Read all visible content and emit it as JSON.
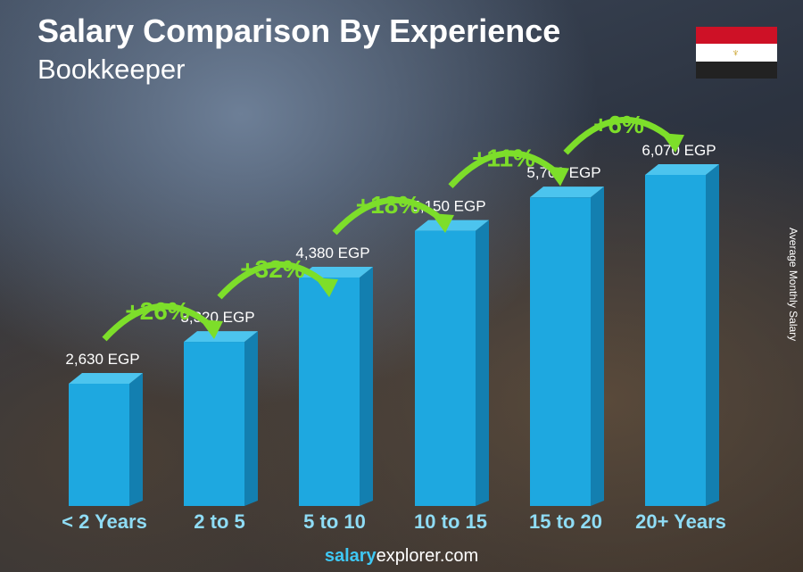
{
  "title": "Salary Comparison By Experience",
  "subtitle": "Bookkeeper",
  "flag_colors": [
    "#ce1126",
    "#ffffff",
    "#000000"
  ],
  "site": {
    "part1": "salary",
    "part2": "explorer",
    ".com": ".com",
    "suffix": ".com"
  },
  "chart_data": {
    "type": "bar",
    "categories": [
      "< 2 Years",
      "2 to 5",
      "5 to 10",
      "10 to 15",
      "15 to 20",
      "20+ Years"
    ],
    "values": [
      2630,
      3320,
      4380,
      5150,
      5700,
      6070
    ],
    "value_labels": [
      "2,630 EGP",
      "3,320 EGP",
      "4,380 EGP",
      "5,150 EGP",
      "5,700 EGP",
      "6,070 EGP"
    ],
    "changes": [
      "+26%",
      "+32%",
      "+18%",
      "+11%",
      "+6%"
    ],
    "ylabel": "Average Monthly Salary",
    "bar_color": "#1ea8e0",
    "change_color": "#7dde2a"
  }
}
